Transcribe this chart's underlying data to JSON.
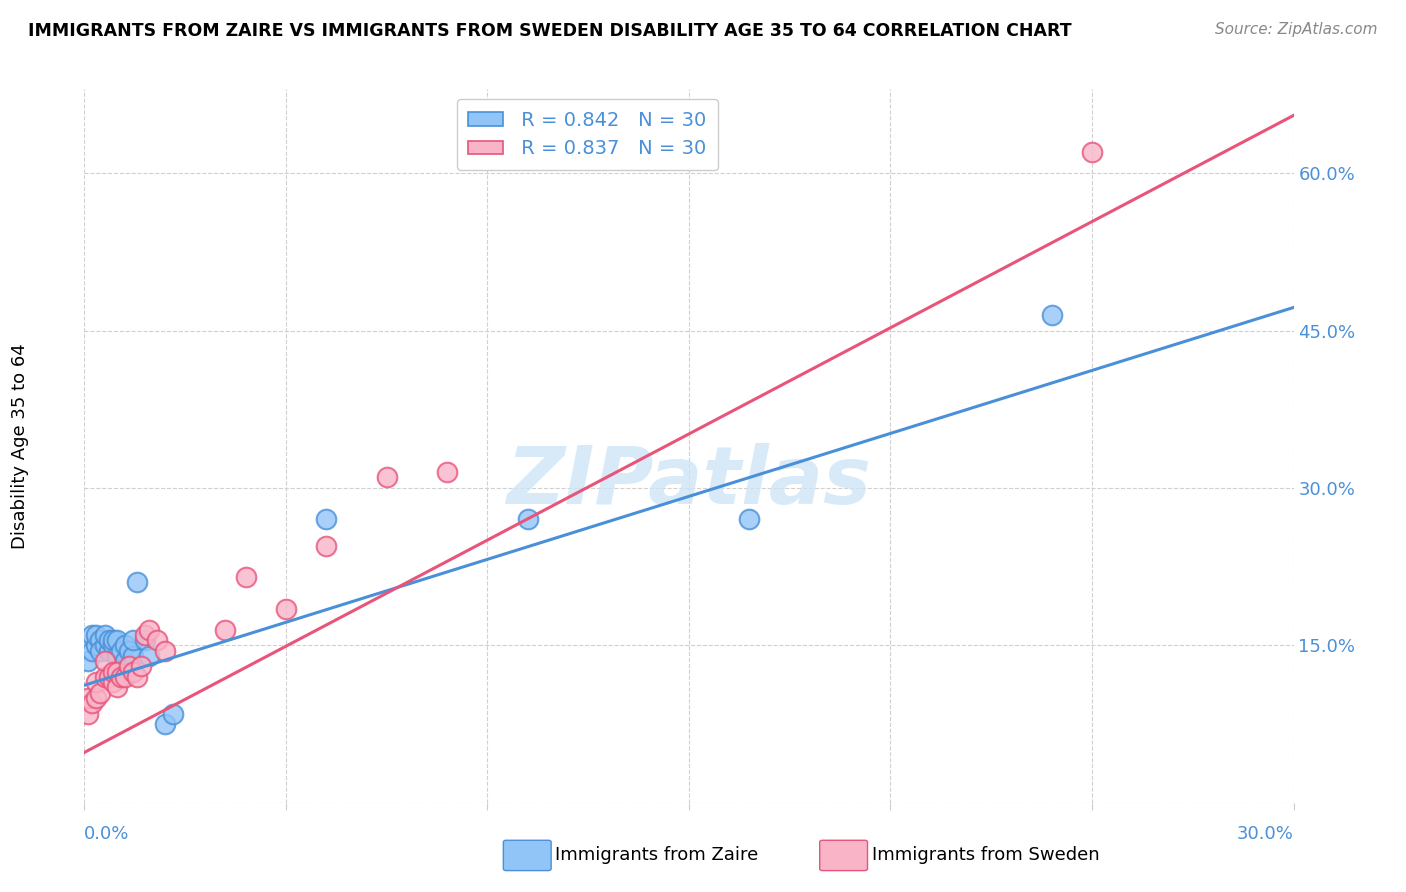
{
  "title": "IMMIGRANTS FROM ZAIRE VS IMMIGRANTS FROM SWEDEN DISABILITY AGE 35 TO 64 CORRELATION CHART",
  "source_text": "Source: ZipAtlas.com",
  "ylabel": "Disability Age 35 to 64",
  "xlim": [
    0.0,
    0.3
  ],
  "ylim": [
    0.0,
    0.68
  ],
  "watermark": "ZIPatlas",
  "legend_zaire_R": "R = 0.842",
  "legend_zaire_N": "N = 30",
  "legend_sweden_R": "R = 0.837",
  "legend_sweden_N": "N = 30",
  "color_zaire": "#92c5f7",
  "color_sweden": "#f9b4c8",
  "color_zaire_line": "#4a90d9",
  "color_sweden_line": "#e8547a",
  "color_label": "#4a90d9",
  "ytick_values": [
    0.0,
    0.15,
    0.3,
    0.45,
    0.6
  ],
  "ytick_labels": [
    "",
    "15.0%",
    "30.0%",
    "45.0%",
    "60.0%"
  ],
  "xtick_values": [
    0.0,
    0.05,
    0.1,
    0.15,
    0.2,
    0.25,
    0.3
  ],
  "zaire_x": [
    0.001,
    0.002,
    0.002,
    0.003,
    0.003,
    0.004,
    0.004,
    0.005,
    0.005,
    0.006,
    0.006,
    0.007,
    0.007,
    0.008,
    0.008,
    0.009,
    0.01,
    0.01,
    0.011,
    0.012,
    0.012,
    0.013,
    0.015,
    0.016,
    0.02,
    0.022,
    0.06,
    0.11,
    0.165,
    0.24
  ],
  "zaire_y": [
    0.135,
    0.145,
    0.16,
    0.15,
    0.16,
    0.155,
    0.145,
    0.15,
    0.16,
    0.145,
    0.155,
    0.15,
    0.155,
    0.14,
    0.155,
    0.145,
    0.135,
    0.15,
    0.145,
    0.14,
    0.155,
    0.21,
    0.155,
    0.14,
    0.075,
    0.085,
    0.27,
    0.27,
    0.27,
    0.465
  ],
  "sweden_x": [
    0.001,
    0.001,
    0.002,
    0.003,
    0.003,
    0.004,
    0.005,
    0.005,
    0.006,
    0.007,
    0.007,
    0.008,
    0.008,
    0.009,
    0.01,
    0.011,
    0.012,
    0.013,
    0.014,
    0.015,
    0.016,
    0.018,
    0.02,
    0.035,
    0.04,
    0.05,
    0.06,
    0.075,
    0.09,
    0.25
  ],
  "sweden_y": [
    0.085,
    0.1,
    0.095,
    0.1,
    0.115,
    0.105,
    0.12,
    0.135,
    0.12,
    0.115,
    0.125,
    0.125,
    0.11,
    0.12,
    0.12,
    0.13,
    0.125,
    0.12,
    0.13,
    0.16,
    0.165,
    0.155,
    0.145,
    0.165,
    0.215,
    0.185,
    0.245,
    0.31,
    0.315,
    0.62
  ],
  "zaire_line_x": [
    0.0,
    0.3
  ],
  "zaire_line_y": [
    0.112,
    0.472
  ],
  "sweden_line_x": [
    0.0,
    0.3
  ],
  "sweden_line_y": [
    0.048,
    0.655
  ]
}
